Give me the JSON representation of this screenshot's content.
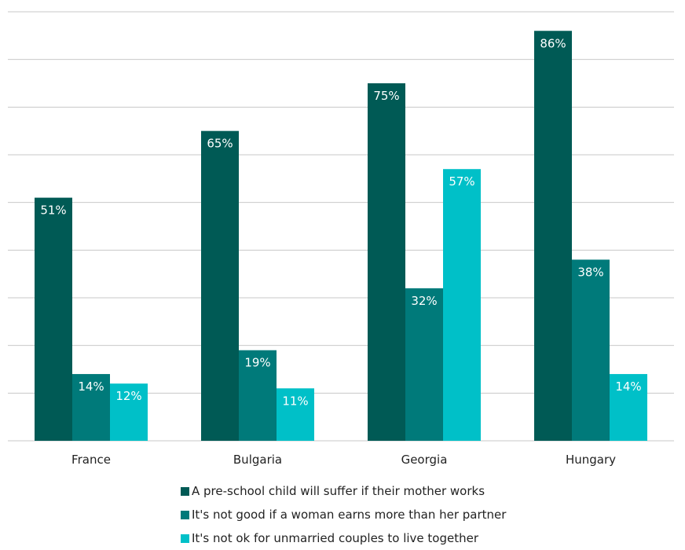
{
  "chart_data": {
    "type": "bar",
    "categories": [
      "France",
      "Bulgaria",
      "Georgia",
      "Hungary"
    ],
    "series": [
      {
        "name": "A pre-school child will suffer if their mother works",
        "values": [
          51,
          65,
          75,
          86
        ],
        "labels": [
          "51%",
          "65%",
          "75%",
          "86%"
        ],
        "color": "#005a55"
      },
      {
        "name": "It's not good if a woman earns more than her partner",
        "values": [
          14,
          19,
          32,
          38
        ],
        "labels": [
          "14%",
          "19%",
          "32%",
          "38%"
        ],
        "color": "#007a7a"
      },
      {
        "name": "It's not ok for unmarried couples to live together",
        "values": [
          12,
          11,
          57,
          14
        ],
        "labels": [
          "12%",
          "11%",
          "57%",
          "14%"
        ],
        "color": "#00c0c8"
      }
    ],
    "ylim": [
      0,
      90
    ],
    "grid": true,
    "legend_position": "bottom"
  }
}
